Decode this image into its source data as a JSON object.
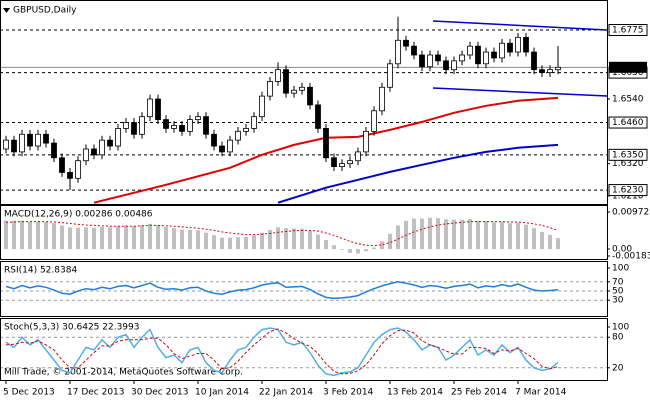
{
  "chart_data": [
    {
      "type": "candlestick",
      "title": "GBPUSD,Daily",
      "categories": [
        "5 Dec 2013",
        null,
        null,
        null,
        null,
        null,
        null,
        null,
        "17 Dec 2013",
        null,
        null,
        null,
        null,
        null,
        null,
        null,
        "30 Dec 2013",
        null,
        null,
        null,
        null,
        null,
        null,
        null,
        "10 Jan 2014",
        null,
        null,
        null,
        null,
        null,
        null,
        null,
        "22 Jan 2014",
        null,
        null,
        null,
        null,
        null,
        null,
        null,
        "3 Feb 2014",
        null,
        null,
        null,
        null,
        null,
        null,
        null,
        "13 Feb 2014",
        null,
        null,
        null,
        null,
        null,
        null,
        null,
        "25 Feb 2014",
        null,
        null,
        null,
        null,
        null,
        null,
        null,
        "7 Mar 2014",
        null,
        null,
        null,
        null,
        null
      ],
      "open": [
        1.637,
        1.64,
        1.636,
        1.642,
        1.638,
        1.642,
        1.639,
        1.634,
        1.629,
        1.627,
        1.633,
        1.637,
        1.635,
        1.64,
        1.638,
        1.644,
        1.646,
        1.642,
        1.648,
        1.654,
        1.647,
        1.644,
        1.645,
        1.643,
        1.647,
        1.648,
        1.642,
        1.638,
        1.636,
        1.64,
        1.643,
        1.644,
        1.648,
        1.655,
        1.66,
        1.664,
        1.656,
        1.657,
        1.658,
        1.652,
        1.644,
        1.634,
        1.631,
        1.632,
        1.633,
        1.636,
        1.643,
        1.65,
        1.658,
        1.666,
        1.674,
        1.672,
        1.669,
        1.665,
        1.669,
        1.667,
        1.664,
        1.667,
        1.669,
        1.672,
        1.666,
        1.67,
        1.668,
        1.673,
        1.67,
        1.675,
        1.67,
        1.664,
        1.663,
        1.664
      ],
      "high": [
        1.6415,
        1.6415,
        1.6435,
        1.6435,
        1.6435,
        1.6435,
        1.6405,
        1.6355,
        1.6305,
        1.6345,
        1.6385,
        1.6385,
        1.6415,
        1.6415,
        1.6455,
        1.6475,
        1.6475,
        1.6495,
        1.6555,
        1.6555,
        1.6485,
        1.6465,
        1.6465,
        1.6485,
        1.6495,
        1.6495,
        1.6435,
        1.6395,
        1.6415,
        1.6445,
        1.6455,
        1.6495,
        1.6565,
        1.6615,
        1.6665,
        1.6655,
        1.6585,
        1.6595,
        1.6595,
        1.6535,
        1.6455,
        1.6355,
        1.6335,
        1.6345,
        1.6375,
        1.6445,
        1.6515,
        1.6595,
        1.6675,
        1.682,
        1.6755,
        1.6735,
        1.6705,
        1.6705,
        1.6705,
        1.6685,
        1.6685,
        1.6705,
        1.6735,
        1.6735,
        1.6715,
        1.6715,
        1.6745,
        1.6745,
        1.6765,
        1.6765,
        1.6715,
        1.6655,
        1.6655,
        1.672
      ],
      "low": [
        1.6355,
        1.6345,
        1.6345,
        1.6365,
        1.6365,
        1.6375,
        1.6325,
        1.6275,
        1.623,
        1.6255,
        1.6315,
        1.6335,
        1.6335,
        1.6365,
        1.6365,
        1.6425,
        1.6405,
        1.6405,
        1.6465,
        1.6455,
        1.6425,
        1.6425,
        1.6415,
        1.6415,
        1.6455,
        1.6405,
        1.6365,
        1.6345,
        1.6345,
        1.6385,
        1.6415,
        1.6425,
        1.6465,
        1.6535,
        1.6585,
        1.6545,
        1.6545,
        1.6555,
        1.6505,
        1.6425,
        1.6325,
        1.6295,
        1.6295,
        1.6305,
        1.6315,
        1.6345,
        1.6415,
        1.6485,
        1.6565,
        1.6645,
        1.6705,
        1.6675,
        1.6635,
        1.6635,
        1.6655,
        1.6625,
        1.6625,
        1.6655,
        1.6675,
        1.6645,
        1.6645,
        1.6665,
        1.6665,
        1.6685,
        1.6685,
        1.6685,
        1.6625,
        1.6615,
        1.6615,
        1.6625
      ],
      "close": [
        1.64,
        1.636,
        1.642,
        1.638,
        1.642,
        1.639,
        1.634,
        1.629,
        1.627,
        1.633,
        1.637,
        1.635,
        1.64,
        1.638,
        1.644,
        1.646,
        1.642,
        1.648,
        1.654,
        1.647,
        1.644,
        1.645,
        1.643,
        1.647,
        1.648,
        1.642,
        1.638,
        1.636,
        1.64,
        1.643,
        1.644,
        1.648,
        1.655,
        1.66,
        1.664,
        1.656,
        1.657,
        1.658,
        1.652,
        1.644,
        1.634,
        1.631,
        1.632,
        1.633,
        1.636,
        1.643,
        1.65,
        1.658,
        1.666,
        1.674,
        1.672,
        1.669,
        1.665,
        1.669,
        1.667,
        1.664,
        1.667,
        1.669,
        1.672,
        1.666,
        1.67,
        1.668,
        1.673,
        1.67,
        1.675,
        1.67,
        1.664,
        1.663,
        1.664,
        1.6648
      ],
      "up_color": "#ffffff",
      "down_color": "#000000",
      "overlays": [
        {
          "color": "#e00000",
          "x": [
            11,
            20,
            28,
            32,
            36,
            40,
            44,
            48,
            52,
            56,
            60,
            64,
            69
          ],
          "values": [
            1.6187,
            1.6248,
            1.6306,
            1.635,
            1.6384,
            1.6408,
            1.6411,
            1.6435,
            1.6462,
            1.6493,
            1.6517,
            1.6534,
            1.6544
          ]
        },
        {
          "color": "#0000cc",
          "x": [
            34,
            40,
            44,
            48,
            52,
            56,
            60,
            64,
            69
          ],
          "values": [
            1.6187,
            1.6238,
            1.6265,
            1.6292,
            1.6316,
            1.634,
            1.636,
            1.6374,
            1.6384
          ]
        }
      ],
      "ylim": [
        1.6186,
        1.6867
      ],
      "yticks": [
        {
          "value": 1.654,
          "label": "1.6540"
        },
        {
          "value": 1.632,
          "label": "1.6320"
        },
        {
          "value": 1.621,
          "label": "1.6210"
        }
      ],
      "levels": [
        1.6775,
        {
          "value": 1.663,
          "label": "1.6630"
        },
        {
          "value": 1.646,
          "label": "1.6460"
        },
        {
          "value": 1.635,
          "label": "1.6350"
        },
        {
          "value": 1.623,
          "label": "1.6230"
        }
      ],
      "bid": 1.6648
    },
    {
      "type": "macd",
      "title": "MACD(12,26,9) 0.00286 0.00486",
      "color": "#c0c0c0",
      "signal_color": "#e00000",
      "values": [
        0.0075,
        0.0074,
        0.0074,
        0.0072,
        0.0072,
        0.0071,
        0.0068,
        0.0062,
        0.0057,
        0.0056,
        0.0057,
        0.0056,
        0.0058,
        0.0057,
        0.006,
        0.0062,
        0.006,
        0.0062,
        0.0066,
        0.0063,
        0.0058,
        0.0055,
        0.0051,
        0.005,
        0.0049,
        0.0043,
        0.0036,
        0.003,
        0.003,
        0.0031,
        0.0032,
        0.0036,
        0.0043,
        0.005,
        0.0057,
        0.0055,
        0.0054,
        0.0053,
        0.0048,
        0.0038,
        0.0024,
        0.001,
        -0.0002,
        -0.001,
        -0.0012,
        -0.0006,
        0.0004,
        0.002,
        0.004,
        0.0062,
        0.0074,
        0.008,
        0.008,
        0.0082,
        0.0081,
        0.0078,
        0.0077,
        0.0077,
        0.0079,
        0.0074,
        0.0073,
        0.007,
        0.0071,
        0.0068,
        0.0069,
        0.0064,
        0.0055,
        0.0045,
        0.0037,
        0.00286
      ],
      "signal": [
        0.007,
        0.0071,
        0.0072,
        0.0072,
        0.0072,
        0.0072,
        0.0071,
        0.0069,
        0.0067,
        0.0065,
        0.0063,
        0.0062,
        0.0061,
        0.006,
        0.006,
        0.006,
        0.006,
        0.0061,
        0.0062,
        0.0062,
        0.0061,
        0.006,
        0.0058,
        0.0056,
        0.0055,
        0.0052,
        0.0049,
        0.0045,
        0.0042,
        0.004,
        0.0038,
        0.0038,
        0.0039,
        0.0041,
        0.0044,
        0.0046,
        0.0048,
        0.0049,
        0.0049,
        0.0047,
        0.0042,
        0.0036,
        0.0028,
        0.002,
        0.0014,
        0.001,
        0.0009,
        0.0011,
        0.0017,
        0.0026,
        0.0036,
        0.0045,
        0.0052,
        0.0058,
        0.0063,
        0.0066,
        0.0068,
        0.007,
        0.0072,
        0.0072,
        0.0072,
        0.0072,
        0.0072,
        0.0071,
        0.0071,
        0.0069,
        0.0066,
        0.0062,
        0.0056,
        0.00486
      ],
      "ylim": [
        -0.00183,
        0.00972
      ],
      "yticks": [
        0.00972,
        {
          "value": 0,
          "label": "0.00"
        },
        -0.00183
      ]
    },
    {
      "type": "line",
      "title": "RSI(14) 52.8384",
      "grid": true,
      "series": [
        {
          "color": "#1e7fd8",
          "values": [
            60,
            55,
            62,
            57,
            61,
            58,
            52,
            45,
            43,
            50,
            55,
            53,
            58,
            55,
            60,
            62,
            57,
            62,
            67,
            58,
            54,
            55,
            52,
            57,
            58,
            50,
            45,
            43,
            48,
            52,
            53,
            57,
            63,
            66,
            68,
            58,
            59,
            60,
            53,
            44,
            36,
            34,
            35,
            37,
            40,
            48,
            55,
            61,
            66,
            70,
            67,
            63,
            58,
            62,
            60,
            56,
            60,
            62,
            65,
            57,
            61,
            59,
            64,
            60,
            65,
            58,
            52,
            50,
            51,
            52.8384
          ]
        }
      ],
      "ylim": [
        0,
        100
      ],
      "yticks": [
        100,
        70,
        50,
        30
      ]
    },
    {
      "type": "line",
      "title": "Stoch(5,3,3) 30.6425 22.3993",
      "grid": true,
      "series": [
        {
          "color": "#4fb0e8",
          "values": [
            70,
            60,
            80,
            65,
            75,
            55,
            35,
            15,
            10,
            35,
            60,
            55,
            75,
            60,
            80,
            85,
            60,
            80,
            95,
            60,
            40,
            45,
            30,
            55,
            60,
            30,
            15,
            10,
            35,
            55,
            60,
            80,
            95,
            98,
            95,
            70,
            65,
            70,
            50,
            25,
            8,
            5,
            10,
            12,
            20,
            45,
            70,
            85,
            95,
            98,
            90,
            75,
            55,
            65,
            60,
            35,
            45,
            60,
            75,
            45,
            55,
            45,
            65,
            50,
            60,
            35,
            20,
            15,
            18,
            30.6425
          ]
        },
        {
          "color": "#e00000",
          "dash": true,
          "values": [
            65,
            66,
            70,
            68,
            73,
            65,
            55,
            35,
            20,
            20,
            35,
            50,
            63,
            63,
            72,
            75,
            75,
            75,
            78,
            78,
            65,
            48,
            38,
            43,
            48,
            48,
            35,
            18,
            20,
            33,
            50,
            65,
            78,
            91,
            96,
            88,
            77,
            68,
            62,
            48,
            28,
            13,
            8,
            9,
            14,
            26,
            45,
            67,
            83,
            93,
            94,
            88,
            73,
            65,
            60,
            53,
            47,
            47,
            60,
            60,
            58,
            48,
            55,
            53,
            58,
            48,
            38,
            23,
            18,
            22.3993
          ]
        }
      ],
      "ylim": [
        0,
        100
      ],
      "yticks": [
        100,
        80,
        20
      ]
    }
  ],
  "credit": "Mill Trade, © 2001-2014, MetaQuotes Software Corp."
}
